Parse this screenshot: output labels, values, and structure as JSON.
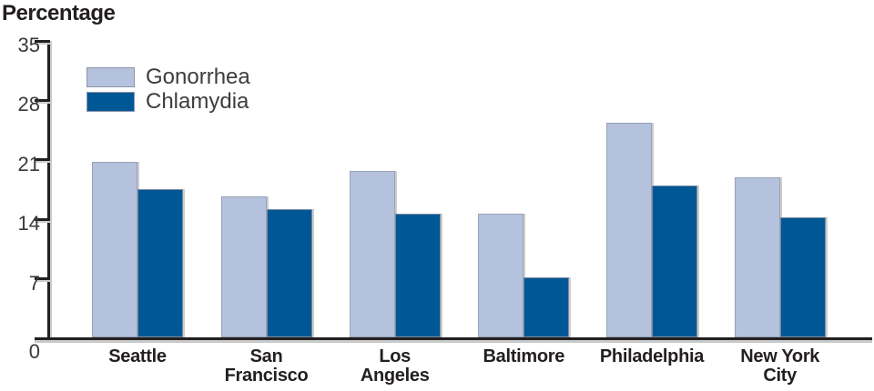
{
  "title": "Percentage",
  "colors": {
    "gonorrhea_bar": "#b4c2dd",
    "chlamydia_bar": "#005796",
    "axis": "#231f20",
    "shadow": "#c8c8c8",
    "tick_label": "#3a3a3a",
    "legend_label": "#3d3d3d"
  },
  "legend": {
    "items": [
      {
        "label": "Gonorrhea",
        "color": "#b4c2dd"
      },
      {
        "label": "Chlamydia",
        "color": "#005796"
      }
    ]
  },
  "chart_data": {
    "type": "bar",
    "title": "Percentage",
    "ylabel": "Percentage",
    "xlabel": "",
    "ylim": [
      0,
      35
    ],
    "yticks": [
      35,
      28,
      21,
      14,
      7,
      0
    ],
    "grid": false,
    "legend_position": "top-left",
    "categories": [
      "Seattle",
      "San Francisco",
      "Los Angeles",
      "Baltimore",
      "Philadelphia",
      "New York City"
    ],
    "category_label_lines": [
      [
        "Seattle"
      ],
      [
        "San",
        "Francisco"
      ],
      [
        "Los",
        "Angeles"
      ],
      [
        "Baltimore"
      ],
      [
        "Philadelphia"
      ],
      [
        "New York",
        "City"
      ]
    ],
    "series": [
      {
        "name": "Gonorrhea",
        "color": "#b4c2dd",
        "values": [
          20.7,
          16.6,
          19.6,
          14.6,
          25.3,
          18.8
        ]
      },
      {
        "name": "Chlamydia",
        "color": "#005796",
        "values": [
          17.4,
          15.1,
          14.6,
          7.1,
          17.9,
          14.1
        ]
      }
    ]
  }
}
